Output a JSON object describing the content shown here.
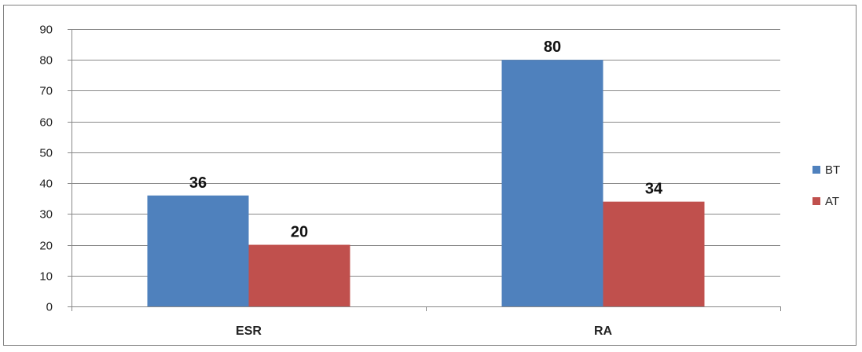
{
  "chart_data": {
    "type": "bar",
    "categories": [
      "ESR",
      "RA"
    ],
    "series": [
      {
        "name": "BT",
        "values": [
          36,
          80
        ],
        "color": "#4f81bd"
      },
      {
        "name": "AT",
        "values": [
          20,
          34
        ],
        "color": "#c0504d"
      }
    ],
    "ylim": [
      0,
      90
    ],
    "yticks": [
      0,
      10,
      20,
      30,
      40,
      50,
      60,
      70,
      80,
      90
    ],
    "grid": true,
    "legend": "right",
    "data_labels": true
  },
  "colors": {
    "grid": "#888888",
    "axis": "#888888"
  }
}
